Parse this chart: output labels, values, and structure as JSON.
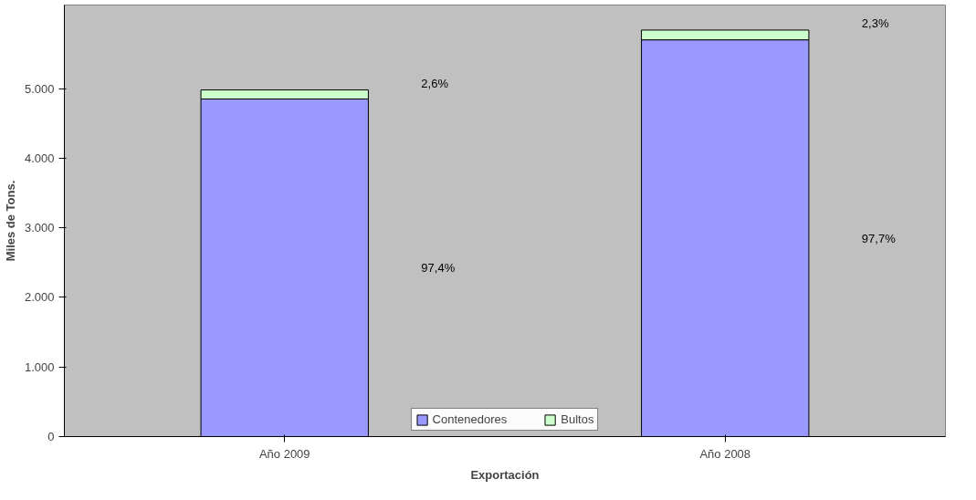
{
  "chart_data": {
    "type": "bar",
    "stacked": true,
    "xlabel": "Exportación",
    "ylabel": "Miles de Tons.",
    "categories": [
      "Año 2009",
      "Año 2008"
    ],
    "series": [
      {
        "name": "Contenedores",
        "color": "#9999ff",
        "values": [
          4850,
          5700
        ]
      },
      {
        "name": "Bultos",
        "color": "#ccffcc",
        "values": [
          130,
          140
        ]
      }
    ],
    "annotations": [
      "97,4%",
      "2,6%",
      "97,7%",
      "2,3%"
    ],
    "ylim": [
      0,
      6200
    ],
    "yticks": [
      {
        "value": 0,
        "label": "0"
      },
      {
        "value": 1000,
        "label": "1.000"
      },
      {
        "value": 2000,
        "label": "2.000"
      },
      {
        "value": 3000,
        "label": "3.000"
      },
      {
        "value": 4000,
        "label": "4.000"
      },
      {
        "value": 5000,
        "label": "5.000"
      }
    ],
    "grid": false,
    "legend": "bottom"
  }
}
